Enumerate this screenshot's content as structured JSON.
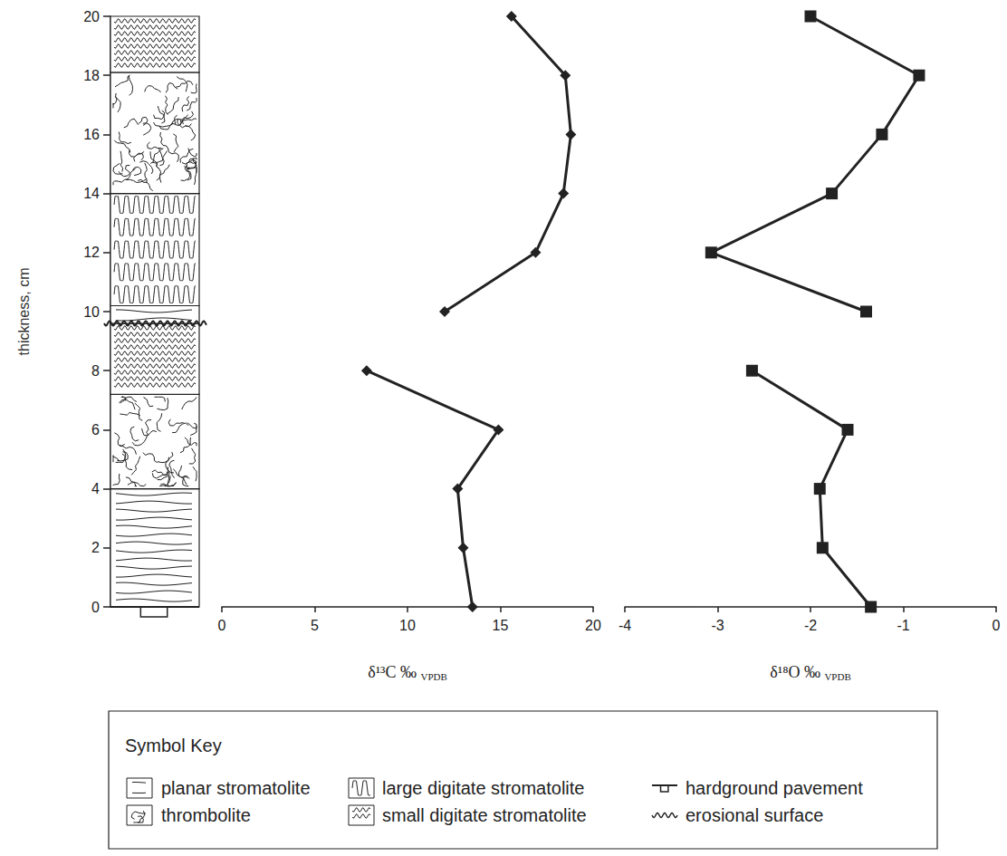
{
  "chart_data": [
    {
      "type": "column",
      "y_label": "thickness, cm",
      "ylim": [
        0,
        20
      ],
      "yticks": [
        0,
        2,
        4,
        6,
        8,
        10,
        12,
        14,
        16,
        18,
        20
      ],
      "grid": false,
      "tick_labels": "y",
      "units": [
        {
          "from": 0,
          "to": 4,
          "lithology": "planar stromatolite"
        },
        {
          "from": 4,
          "to": 7.2,
          "lithology": "thrombolite"
        },
        {
          "from": 7.2,
          "to": 9.6,
          "lithology": "small digitate stromatolite"
        },
        {
          "from": 9.6,
          "to": 10.2,
          "lithology": "planar stromatolite"
        },
        {
          "from": 10.2,
          "to": 14,
          "lithology": "large digitate stromatolite"
        },
        {
          "from": 14,
          "to": 18.1,
          "lithology": "thrombolite"
        },
        {
          "from": 18.1,
          "to": 20,
          "lithology": "small digitate stromatolite"
        }
      ],
      "surfaces": [
        {
          "at": 0,
          "kind": "hardground pavement"
        },
        {
          "at": 9.6,
          "kind": "erosional surface"
        }
      ]
    },
    {
      "type": "line",
      "x_label": "δ¹³C ‰ VPDB",
      "xlim": [
        0,
        20
      ],
      "xticks": [
        0,
        5,
        10,
        15,
        20
      ],
      "ylim": [
        0,
        20
      ],
      "grid": false,
      "tick_labels": "x",
      "color": "#222222",
      "marker": "diamond",
      "line_style": "solid",
      "x": [
        13.5,
        13.0,
        12.7,
        14.9,
        7.8,
        null,
        12.0,
        16.9,
        18.4,
        18.8,
        18.5,
        15.6
      ],
      "y": [
        0,
        2,
        4,
        6,
        8,
        null,
        10,
        12,
        14,
        16,
        18,
        20
      ]
    },
    {
      "type": "line",
      "x_label": "δ¹⁸O ‰ VPDB",
      "xlim": [
        -4,
        0
      ],
      "xticks": [
        -4,
        -3,
        -2,
        -1,
        0
      ],
      "ylim": [
        0,
        20
      ],
      "grid": false,
      "tick_labels": "x",
      "color": "#222222",
      "marker": "square",
      "line_style": "solid",
      "x": [
        -1.35,
        -1.87,
        -1.9,
        -1.6,
        -2.63,
        null,
        -1.4,
        -3.07,
        -1.77,
        -1.23,
        -0.83,
        -2.0
      ],
      "y": [
        0,
        2,
        4,
        6,
        8,
        null,
        10,
        12,
        14,
        16,
        18,
        20
      ]
    }
  ],
  "symbol_key": {
    "title": "Symbol Key",
    "items": [
      "planar stromatolite",
      "thrombolite",
      "large digitate stromatolite",
      "small digitate stromatolite",
      "hardground pavement",
      "erosional surface"
    ]
  }
}
